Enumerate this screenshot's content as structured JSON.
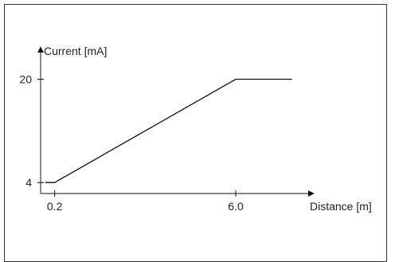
{
  "chart_data": {
    "type": "line",
    "title": "",
    "xlabel": "Distance [m]",
    "ylabel": "Current [mA]",
    "xticks": [
      {
        "value": 0.2,
        "label": "0.2"
      },
      {
        "value": 6.0,
        "label": "6.0"
      }
    ],
    "yticks": [
      {
        "value": 4,
        "label": "4"
      },
      {
        "value": 20,
        "label": "20"
      }
    ],
    "series": [
      {
        "x": [
          -0.1,
          0.2,
          6.0,
          7.8
        ],
        "y": [
          4,
          4,
          20,
          20
        ]
      }
    ],
    "xlim": [
      -0.25,
      8.5
    ],
    "ylim": [
      2.3,
      25
    ],
    "grid": false,
    "colors": {
      "line": "#111111",
      "axis": "#111111",
      "frame": "#333333"
    }
  }
}
